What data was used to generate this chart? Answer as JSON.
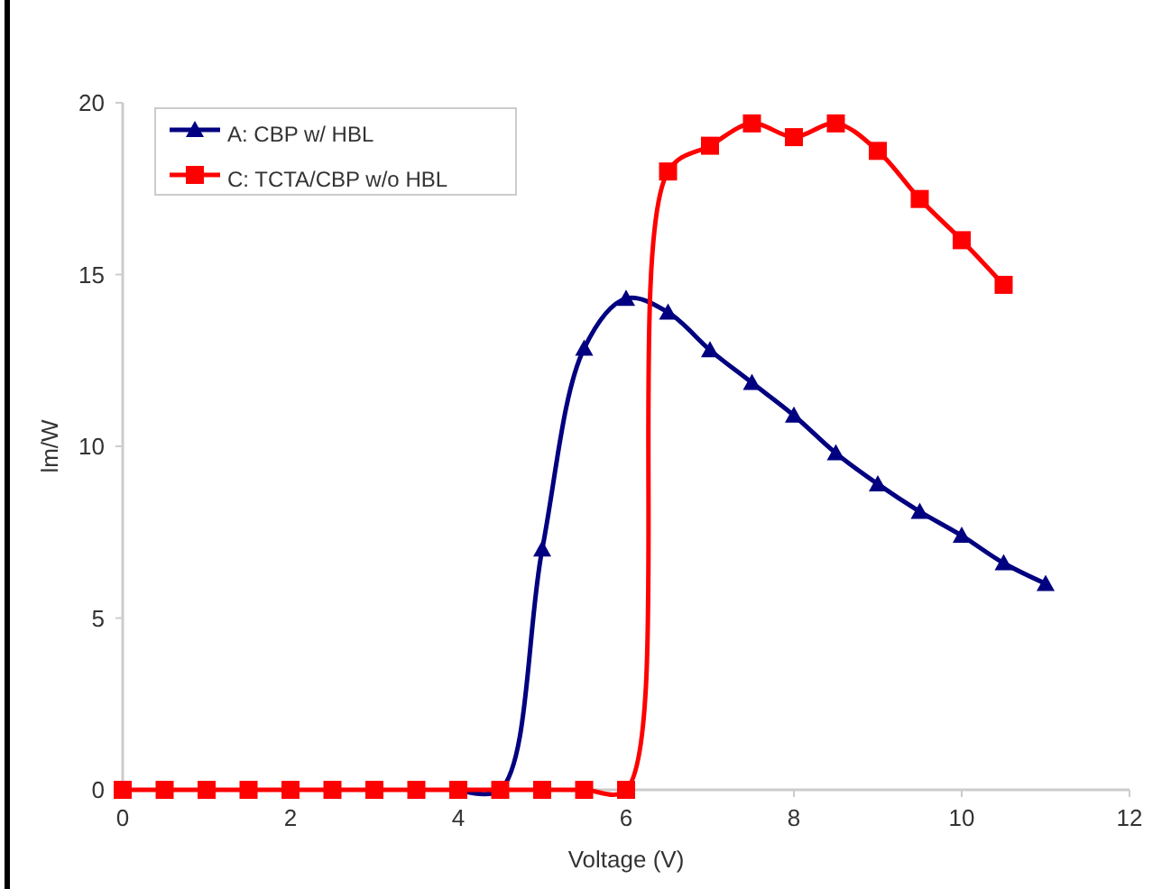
{
  "chart_data": {
    "type": "line",
    "xlabel": "Voltage (V)",
    "ylabel": "lm/W",
    "xlim": [
      0,
      12
    ],
    "xticks": [
      0,
      2,
      4,
      6,
      8,
      10,
      12
    ],
    "ylim": [
      0,
      20
    ],
    "yticks": [
      0,
      5,
      10,
      15,
      20
    ],
    "grid": false,
    "legend": "top left",
    "series": [
      {
        "name": "A: CBP w/ HBL",
        "color": "#000080",
        "marker": "triangle",
        "x": [
          4,
          4.5,
          5,
          5.5,
          6,
          6.5,
          7,
          7.5,
          8,
          8.5,
          9,
          9.5,
          10,
          10.5,
          11
        ],
        "values": [
          0,
          0,
          7,
          12.85,
          14.3,
          13.9,
          12.8,
          11.85,
          10.9,
          9.8,
          8.9,
          8.1,
          7.4,
          6.6,
          6.0
        ]
      },
      {
        "name": "C: TCTA/CBP w/o HBL",
        "color": "#ff0000",
        "marker": "square",
        "x": [
          0,
          0.5,
          1,
          1.5,
          2,
          2.5,
          3,
          3.5,
          4,
          4.5,
          5,
          5.5,
          6,
          6.5,
          7,
          7.5,
          8,
          8.5,
          9,
          9.5,
          10,
          10.5
        ],
        "values": [
          0,
          0,
          0,
          0,
          0,
          0,
          0,
          0,
          0,
          0,
          0,
          0,
          0,
          18,
          18.75,
          19.4,
          19,
          19.4,
          18.6,
          17.2,
          16,
          14.7
        ]
      }
    ]
  }
}
